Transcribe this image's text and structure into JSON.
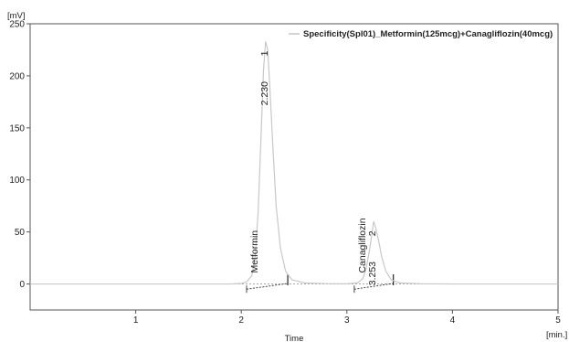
{
  "chart_data": {
    "type": "line",
    "x_unit": "[min.]",
    "y_unit": "[mV]",
    "xlabel": "Time",
    "xlim": [
      0,
      5
    ],
    "ylim": [
      -25,
      250
    ],
    "x_ticks": [
      "1",
      "2",
      "3",
      "4",
      "5"
    ],
    "y_ticks": [
      "0",
      "50",
      "100",
      "150",
      "200",
      "250"
    ],
    "grid": false,
    "legend_position": "top-right",
    "line_color": "#c8c8c8",
    "series": [
      {
        "name": "Specificity(Spl01)_Metformin(125mcg)+Canagliflozin(40mcg)",
        "x": [
          0,
          0.5,
          1.0,
          1.5,
          1.9,
          2.0,
          2.05,
          2.1,
          2.13,
          2.16,
          2.19,
          2.21,
          2.23,
          2.25,
          2.27,
          2.3,
          2.33,
          2.37,
          2.42,
          2.48,
          2.6,
          2.8,
          3.0,
          3.1,
          3.15,
          3.18,
          3.21,
          3.24,
          3.253,
          3.27,
          3.3,
          3.33,
          3.37,
          3.42,
          3.5,
          3.7,
          4.0,
          4.5,
          5.0
        ],
        "y": [
          0,
          0,
          0,
          0,
          0,
          0.5,
          2,
          8,
          25,
          70,
          150,
          205,
          233,
          225,
          190,
          130,
          75,
          35,
          12,
          4,
          1,
          0.3,
          0.2,
          1,
          5,
          14,
          30,
          50,
          60,
          55,
          42,
          26,
          12,
          4,
          1,
          0.2,
          0,
          0,
          0
        ]
      }
    ],
    "peaks": [
      {
        "name": "Metformin",
        "retention_time": "2.230",
        "number": "1",
        "rt_value": 2.23,
        "height": 233,
        "start": 2.05,
        "end": 2.44
      },
      {
        "name": "Canagliflozin",
        "retention_time": "3.253",
        "number": "2",
        "rt_value": 3.253,
        "height": 60,
        "start": 3.07,
        "end": 3.44
      }
    ]
  }
}
